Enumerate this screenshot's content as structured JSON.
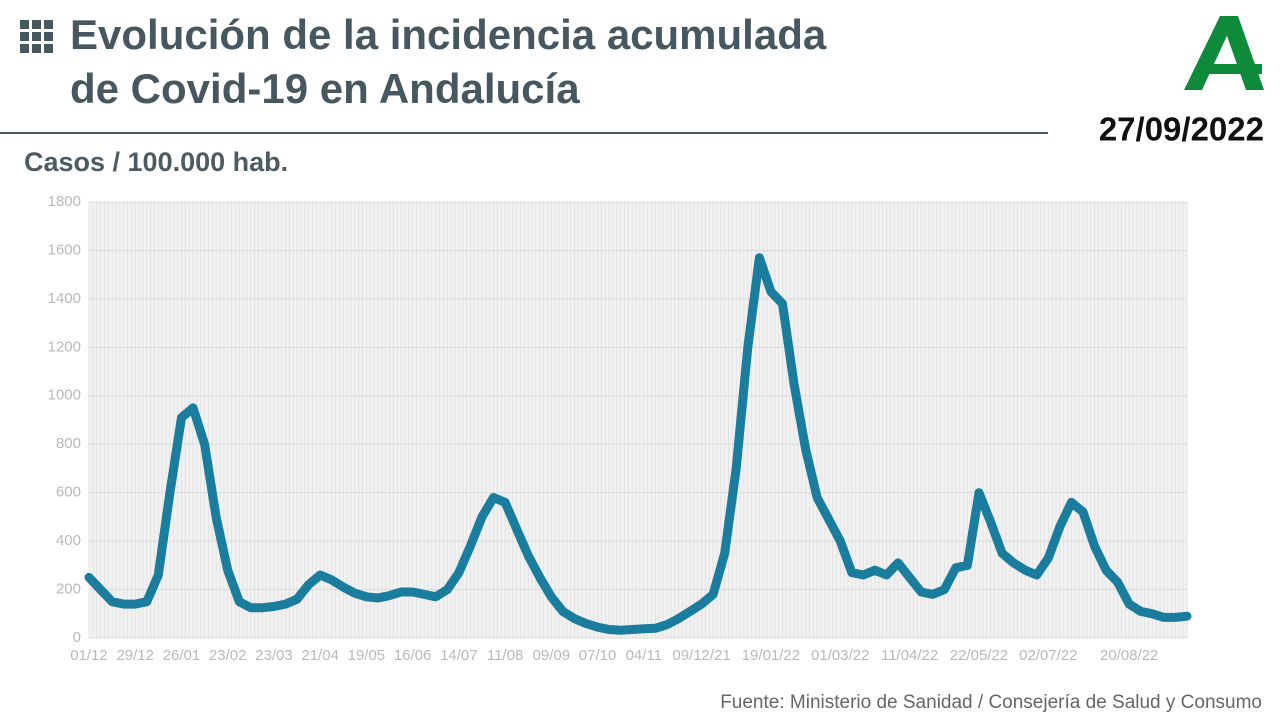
{
  "chart_data": {
    "type": "line",
    "title_line1": "Evolución de la incidencia acumulada",
    "title_line2": "de Covid-19 en Andalucía",
    "date": "27/09/2022",
    "ylabel": "Casos / 100.000 hab.",
    "source": "Fuente: Ministerio de Sanidad / Consejería de Salud y Consumo",
    "categories": [
      "01/12",
      null,
      null,
      null,
      "29/12",
      null,
      null,
      null,
      "26/01",
      null,
      null,
      null,
      "23/02",
      null,
      null,
      null,
      "23/03",
      null,
      null,
      null,
      "21/04",
      null,
      null,
      null,
      "19/05",
      null,
      null,
      null,
      "16/06",
      null,
      null,
      null,
      "14/07",
      null,
      null,
      null,
      "11/08",
      null,
      null,
      null,
      "09/09",
      null,
      null,
      null,
      "07/10",
      null,
      null,
      null,
      "04/11",
      null,
      null,
      null,
      null,
      "09/12/21",
      null,
      null,
      null,
      null,
      null,
      "19/01/22",
      null,
      null,
      null,
      null,
      null,
      "01/03/22",
      null,
      null,
      null,
      null,
      null,
      "11/04/22",
      null,
      null,
      null,
      null,
      null,
      "22/05/22",
      null,
      null,
      null,
      null,
      null,
      "02/07/22",
      null,
      null,
      null,
      null,
      null,
      null,
      "20/08/22",
      null,
      null,
      null,
      null,
      null
    ],
    "series": [
      {
        "name": "Incidencia acumulada",
        "color": "#1b7d9e",
        "values": [
          250,
          200,
          150,
          140,
          140,
          150,
          260,
          600,
          910,
          950,
          800,
          500,
          280,
          150,
          125,
          125,
          130,
          140,
          160,
          220,
          260,
          240,
          210,
          185,
          170,
          165,
          175,
          190,
          190,
          180,
          170,
          200,
          270,
          380,
          500,
          580,
          560,
          450,
          340,
          250,
          170,
          110,
          80,
          60,
          45,
          35,
          32,
          35,
          38,
          40,
          55,
          80,
          110,
          140,
          180,
          350,
          700,
          1200,
          1570,
          1430,
          1380,
          1050,
          780,
          580,
          490,
          400,
          270,
          260,
          280,
          260,
          310,
          250,
          190,
          180,
          200,
          290,
          300,
          600,
          480,
          350,
          310,
          280,
          260,
          330,
          460,
          560,
          520,
          380,
          280,
          230,
          140,
          110,
          100,
          85,
          85,
          90
        ]
      }
    ],
    "ylim": [
      0,
      1800
    ],
    "yticks": [
      0,
      200,
      400,
      600,
      800,
      1000,
      1200,
      1400,
      1600,
      1800
    ],
    "grid": true
  }
}
